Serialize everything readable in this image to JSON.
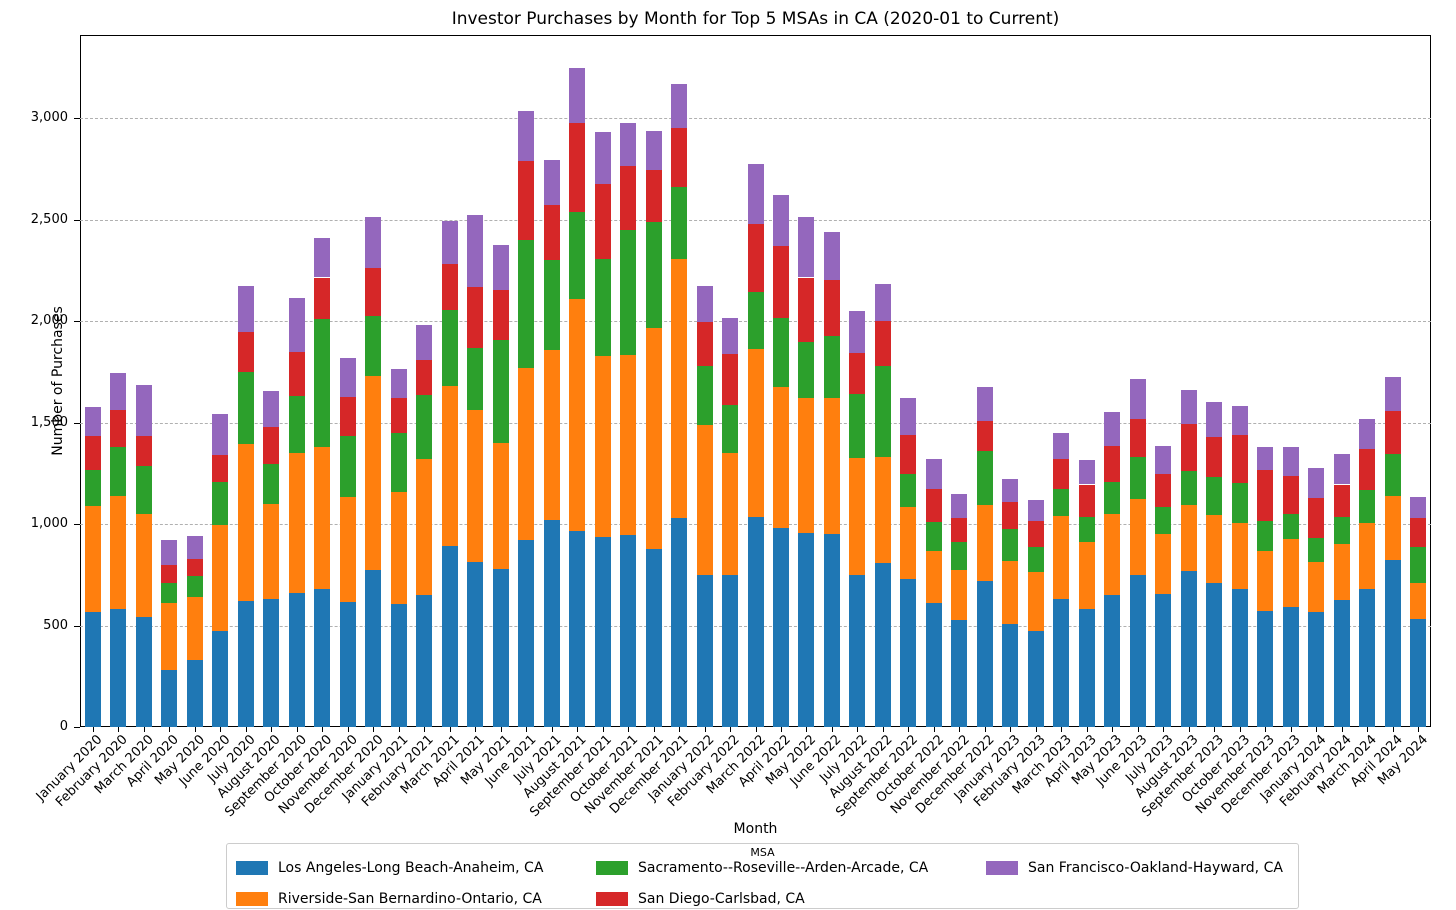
{
  "chart_data": {
    "type": "bar",
    "stacked": true,
    "title": "Investor Purchases by Month for Top 5 MSAs in CA (2020-01 to Current)",
    "xlabel": "Month",
    "ylabel": "Number of Purchases",
    "legend_title": "MSA",
    "grid": "horizontal-dashed",
    "legend_position": "bottom-outside",
    "ylim": [
      0,
      3410
    ],
    "yticks": [
      0,
      500,
      1000,
      1500,
      2000,
      2500,
      3000
    ],
    "ytick_labels": [
      "0",
      "500",
      "1,000",
      "1,500",
      "2,000",
      "2,500",
      "3,000"
    ],
    "categories": [
      "January 2020",
      "February 2020",
      "March 2020",
      "April 2020",
      "May 2020",
      "June 2020",
      "July 2020",
      "August 2020",
      "September 2020",
      "October 2020",
      "November 2020",
      "December 2020",
      "January 2021",
      "February 2021",
      "March 2021",
      "April 2021",
      "May 2021",
      "June 2021",
      "July 2021",
      "August 2021",
      "September 2021",
      "October 2021",
      "November 2021",
      "December 2021",
      "January 2022",
      "February 2022",
      "March 2022",
      "April 2022",
      "May 2022",
      "June 2022",
      "July 2022",
      "August 2022",
      "September 2022",
      "October 2022",
      "November 2022",
      "December 2022",
      "January 2023",
      "February 2023",
      "March 2023",
      "April 2023",
      "May 2023",
      "June 2023",
      "July 2023",
      "August 2023",
      "September 2023",
      "October 2023",
      "November 2023",
      "December 2023",
      "January 2024",
      "February 2024",
      "March 2024",
      "April 2024",
      "May 2024"
    ],
    "series": [
      {
        "name": "Los Angeles-Long Beach-Anaheim, CA",
        "color": "#1f77b4",
        "values": [
          565,
          580,
          540,
          280,
          330,
          475,
          620,
          630,
          660,
          680,
          615,
          775,
          605,
          650,
          890,
          815,
          780,
          920,
          1020,
          965,
          935,
          945,
          875,
          1030,
          750,
          750,
          1035,
          980,
          955,
          950,
          750,
          810,
          730,
          610,
          525,
          720,
          510,
          475,
          630,
          580,
          650,
          750,
          655,
          770,
          710,
          680,
          570,
          590,
          565,
          625,
          680,
          825,
          530
        ]
      },
      {
        "name": "Riverside-San Bernardino-Ontario, CA",
        "color": "#ff7f0e",
        "values": [
          525,
          560,
          510,
          330,
          310,
          520,
          775,
          470,
          690,
          700,
          520,
          955,
          555,
          670,
          790,
          745,
          620,
          850,
          840,
          1145,
          895,
          890,
          1090,
          1275,
          740,
          600,
          830,
          695,
          665,
          670,
          575,
          520,
          355,
          255,
          250,
          375,
          310,
          290,
          410,
          330,
          400,
          375,
          295,
          325,
          335,
          325,
          295,
          335,
          250,
          275,
          325,
          315,
          180
        ]
      },
      {
        "name": "Sacramento--Roseville--Arden-Arcade, CA",
        "color": "#2ca02c",
        "values": [
          175,
          240,
          235,
          100,
          105,
          210,
          355,
          195,
          280,
          630,
          300,
          295,
          290,
          315,
          375,
          310,
          505,
          630,
          440,
          430,
          475,
          615,
          525,
          355,
          290,
          235,
          280,
          340,
          275,
          305,
          315,
          450,
          160,
          145,
          135,
          265,
          155,
          120,
          135,
          125,
          155,
          205,
          135,
          165,
          185,
          195,
          150,
          125,
          115,
          135,
          165,
          205,
          175
        ]
      },
      {
        "name": "San Diego-Carlsbad, CA",
        "color": "#d62728",
        "values": [
          170,
          180,
          150,
          90,
          85,
          135,
          195,
          185,
          220,
          205,
          190,
          235,
          170,
          175,
          225,
          300,
          250,
          390,
          270,
          435,
          370,
          315,
          255,
          290,
          215,
          255,
          335,
          355,
          320,
          280,
          205,
          220,
          195,
          165,
          120,
          150,
          135,
          130,
          145,
          160,
          180,
          190,
          160,
          235,
          200,
          240,
          250,
          185,
          200,
          160,
          200,
          210,
          145
        ]
      },
      {
        "name": "San Francisco-Oakland-Hayward, CA",
        "color": "#9467bd",
        "values": [
          140,
          185,
          250,
          120,
          110,
          200,
          230,
          175,
          265,
          195,
          195,
          255,
          145,
          170,
          215,
          355,
          220,
          245,
          225,
          270,
          255,
          210,
          190,
          220,
          180,
          175,
          295,
          250,
          300,
          235,
          205,
          185,
          180,
          145,
          120,
          165,
          110,
          105,
          130,
          120,
          165,
          195,
          140,
          165,
          170,
          140,
          115,
          145,
          145,
          150,
          150,
          170,
          105
        ]
      }
    ]
  }
}
